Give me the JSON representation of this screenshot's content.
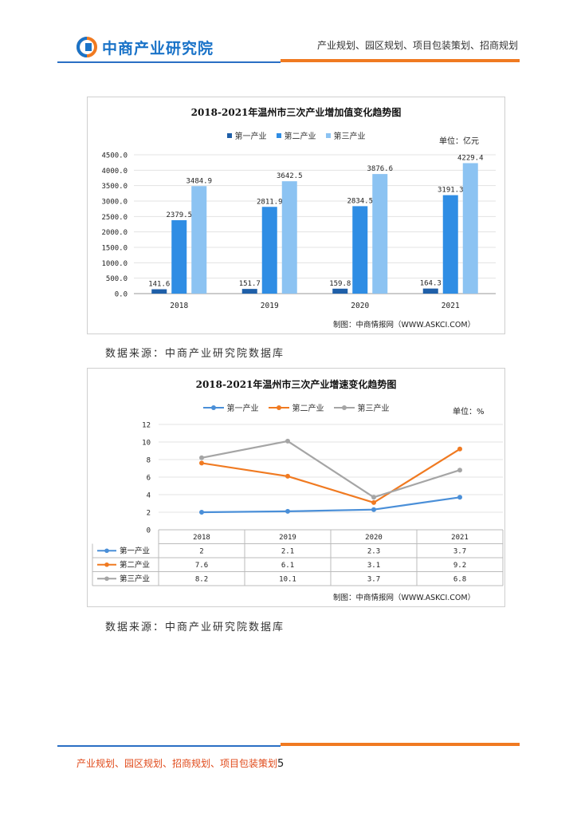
{
  "header": {
    "logo_text": "中商产业研究院",
    "tagline": "产业规划、园区规划、项目包装策划、招商规划"
  },
  "chart1": {
    "title": "2018-2021年温州市三次产业增加值变化趋势图",
    "unit": "单位：亿元",
    "credit": "制图：中商情报网（WWW.ASKCI.COM）",
    "colors": {
      "first": "#1f5fa8",
      "second": "#2f8de4",
      "third": "#8cc3f2"
    },
    "chart_data": {
      "type": "bar",
      "categories": [
        "2018",
        "2019",
        "2020",
        "2021"
      ],
      "series": [
        {
          "name": "第一产业",
          "values": [
            141.6,
            151.7,
            159.8,
            164.3
          ],
          "labels": [
            "141.6",
            "151.7",
            "159.8",
            "164.3"
          ]
        },
        {
          "name": "第二产业",
          "values": [
            2379.5,
            2811.9,
            2834.5,
            3191.3
          ],
          "labels": [
            "2379.5",
            "2811.9",
            "2834.5",
            "3191.3"
          ]
        },
        {
          "name": "第三产业",
          "values": [
            3484.9,
            3642.5,
            3876.6,
            4229.4
          ],
          "labels": [
            "3484.9",
            "3642.5",
            "3876.6",
            "4229.4"
          ]
        }
      ],
      "yticks": [
        "0.0",
        "500.0",
        "1000.0",
        "1500.0",
        "2000.0",
        "2500.0",
        "3000.0",
        "3500.0",
        "4000.0",
        "4500.0"
      ],
      "ylim": [
        0,
        4500
      ],
      "legend": "top"
    }
  },
  "source1": "数据来源：中商产业研究院数据库",
  "chart2": {
    "title": "2018-2021年温州市三次产业增速变化趋势图",
    "unit": "单位：%",
    "credit": "制图：中商情报网（WWW.ASKCI.COM）",
    "colors": {
      "first": "#4a8fd8",
      "second": "#f07a21",
      "third": "#a5a5a5"
    },
    "chart_data": {
      "type": "line",
      "categories": [
        "2018",
        "2019",
        "2020",
        "2021"
      ],
      "series": [
        {
          "name": "第一产业",
          "values": [
            2,
            2.1,
            2.3,
            3.7
          ],
          "labels": [
            "2",
            "2.1",
            "2.3",
            "3.7"
          ]
        },
        {
          "name": "第二产业",
          "values": [
            7.6,
            6.1,
            3.1,
            9.2
          ],
          "labels": [
            "7.6",
            "6.1",
            "3.1",
            "9.2"
          ]
        },
        {
          "name": "第三产业",
          "values": [
            8.2,
            10.1,
            3.7,
            6.8
          ],
          "labels": [
            "8.2",
            "10.1",
            "3.7",
            "6.8"
          ]
        }
      ],
      "yticks": [
        "0",
        "2",
        "4",
        "6",
        "8",
        "10",
        "12"
      ],
      "ylim": [
        0,
        12
      ],
      "legend": "top",
      "data_table": true
    }
  },
  "source2": "数据来源：中商产业研究院数据库",
  "footer": {
    "text": "产业规划、园区规划、招商规划、项目包装策划",
    "page": "5"
  }
}
